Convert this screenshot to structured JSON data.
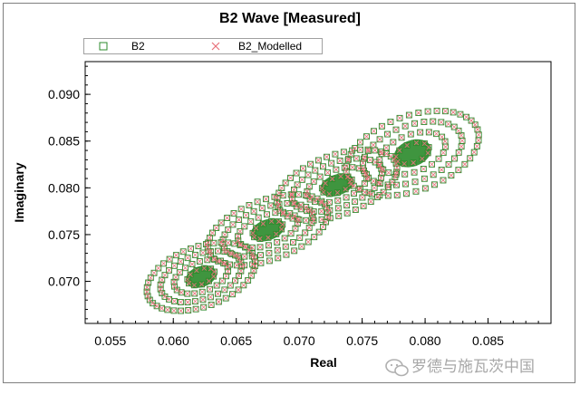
{
  "chart_data": {
    "type": "scatter",
    "title": "B2 Wave [Measured]",
    "xlabel": "Real",
    "ylabel": "Imaginary",
    "xlim": [
      0.053,
      0.09
    ],
    "ylim": [
      0.0655,
      0.0935
    ],
    "xticks": [
      0.055,
      0.06,
      0.065,
      0.07,
      0.075,
      0.08,
      0.085
    ],
    "xtick_labels": [
      "0.055",
      "0.060",
      "0.065",
      "0.070",
      "0.075",
      "0.080",
      "0.085"
    ],
    "yticks": [
      0.07,
      0.075,
      0.08,
      0.085,
      0.09
    ],
    "ytick_labels": [
      "0.070",
      "0.075",
      "0.080",
      "0.085",
      "0.090"
    ],
    "grid": false,
    "legend_position": "top-left",
    "series": [
      {
        "name": "B2",
        "marker": "square",
        "color": "#2e8b2e"
      },
      {
        "name": "B2_Modelled",
        "marker": "x",
        "color": "#e8707a"
      }
    ],
    "clusters": [
      {
        "center": [
          0.0622,
          0.0705
        ],
        "outer_radius": [
          0.0045,
          0.0032
        ],
        "rings": 4
      },
      {
        "center": [
          0.0675,
          0.0755
        ],
        "outer_radius": [
          0.005,
          0.0032
        ],
        "rings": 4
      },
      {
        "center": [
          0.073,
          0.0803
        ],
        "outer_radius": [
          0.005,
          0.0032
        ],
        "rings": 4
      },
      {
        "center": [
          0.079,
          0.0837
        ],
        "outer_radius": [
          0.0055,
          0.004
        ],
        "rings": 4
      }
    ]
  },
  "watermark": {
    "text": "罗德与施瓦茨中国",
    "icon": "wechat-icon"
  }
}
